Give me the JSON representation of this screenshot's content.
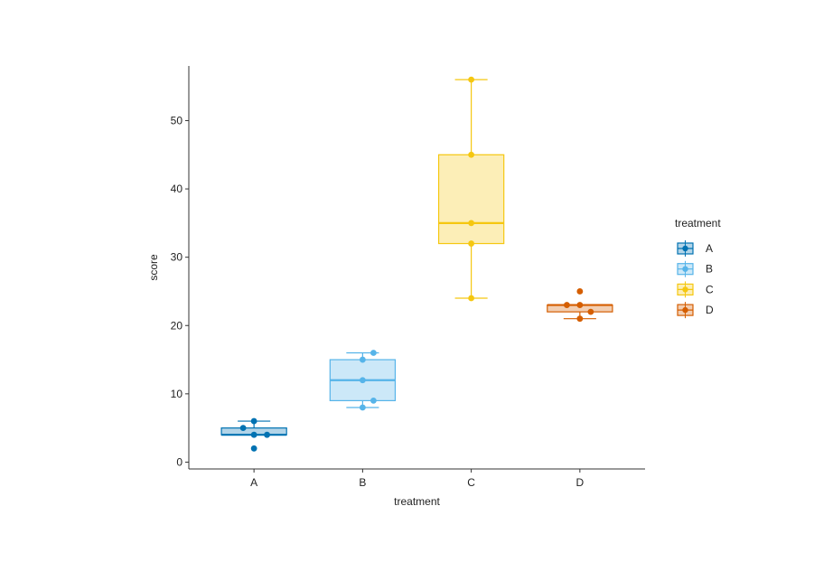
{
  "chart_data": {
    "type": "box",
    "xlabel": "treatment",
    "ylabel": "score",
    "categories": [
      "A",
      "B",
      "C",
      "D"
    ],
    "ylim": [
      -1,
      58
    ],
    "yticks": [
      0,
      10,
      20,
      30,
      40,
      50
    ],
    "grid": false,
    "legend": {
      "title": "treatment",
      "position": "right",
      "entries": [
        "A",
        "B",
        "C",
        "D"
      ]
    },
    "colors": {
      "A": "#0072B2",
      "B": "#56B4E9",
      "C": "#F5C710",
      "D": "#D55E00"
    },
    "boxes": [
      {
        "category": "A",
        "min": 2,
        "q1": 4,
        "median": 4,
        "q3": 5,
        "max": 6,
        "whisker_low": 4,
        "whisker_high": 6
      },
      {
        "category": "B",
        "min": 8,
        "q1": 9,
        "median": 12,
        "q3": 15,
        "max": 16,
        "whisker_low": 8,
        "whisker_high": 16
      },
      {
        "category": "C",
        "min": 24,
        "q1": 32,
        "median": 35,
        "q3": 45,
        "max": 56,
        "whisker_low": 24,
        "whisker_high": 56
      },
      {
        "category": "D",
        "min": 21,
        "q1": 22,
        "median": 23,
        "q3": 23,
        "max": 25,
        "whisker_low": 21,
        "whisker_high": 23
      }
    ],
    "points": [
      {
        "category": "A",
        "offset": -0.1,
        "y": 5
      },
      {
        "category": "A",
        "offset": 0.0,
        "y": 6
      },
      {
        "category": "A",
        "offset": 0.0,
        "y": 4
      },
      {
        "category": "A",
        "offset": 0.12,
        "y": 4
      },
      {
        "category": "A",
        "offset": 0.0,
        "y": 2
      },
      {
        "category": "B",
        "offset": 0.0,
        "y": 15
      },
      {
        "category": "B",
        "offset": 0.1,
        "y": 16
      },
      {
        "category": "B",
        "offset": 0.0,
        "y": 12
      },
      {
        "category": "B",
        "offset": 0.1,
        "y": 9
      },
      {
        "category": "B",
        "offset": 0.0,
        "y": 8
      },
      {
        "category": "C",
        "offset": 0.0,
        "y": 56
      },
      {
        "category": "C",
        "offset": 0.0,
        "y": 45
      },
      {
        "category": "C",
        "offset": 0.0,
        "y": 35
      },
      {
        "category": "C",
        "offset": 0.0,
        "y": 32
      },
      {
        "category": "C",
        "offset": 0.0,
        "y": 24
      },
      {
        "category": "D",
        "offset": 0.0,
        "y": 25
      },
      {
        "category": "D",
        "offset": -0.12,
        "y": 23
      },
      {
        "category": "D",
        "offset": 0.0,
        "y": 23
      },
      {
        "category": "D",
        "offset": 0.1,
        "y": 22
      },
      {
        "category": "D",
        "offset": 0.0,
        "y": 21
      }
    ]
  }
}
